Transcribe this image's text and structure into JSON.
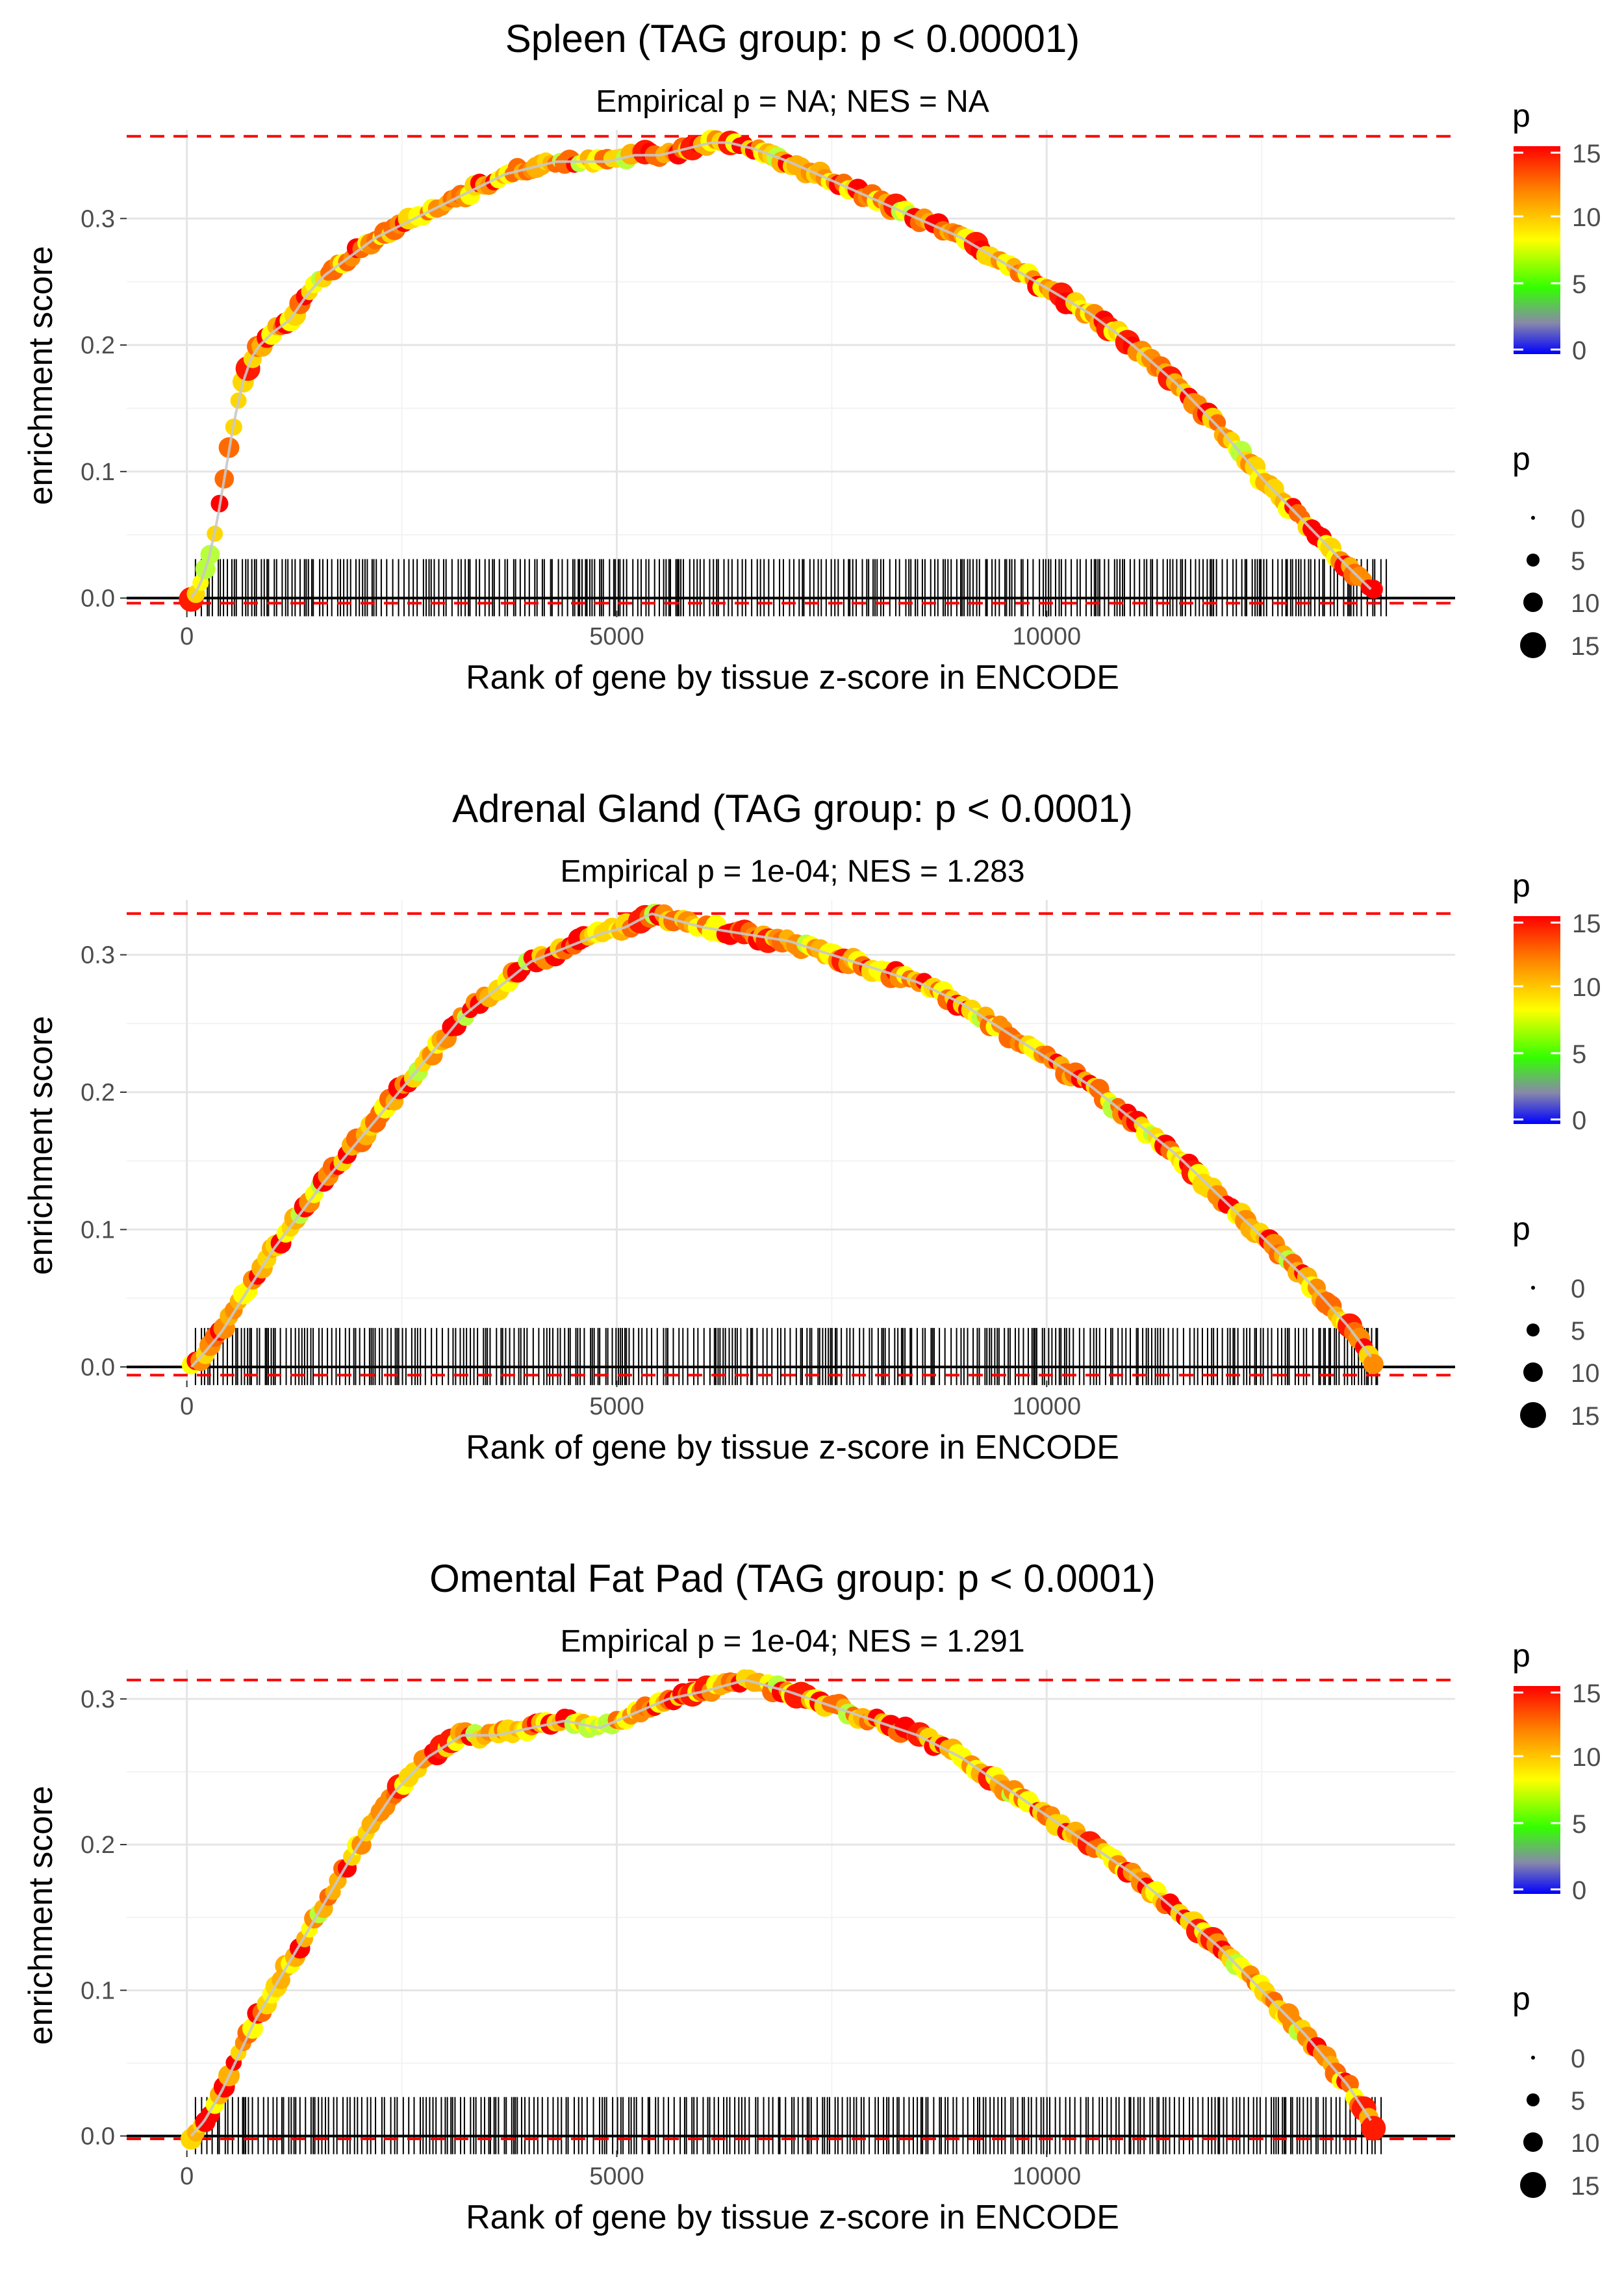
{
  "chart_data": [
    {
      "type": "line",
      "title": "Spleen (TAG group: p < 0.00001)",
      "subtitle": "Empirical p = NA; NES = NA",
      "xlabel": "Rank of gene by tissue z-score in ENCODE",
      "ylabel": "enrichment score",
      "xlim": [
        -700,
        14750
      ],
      "ylim": [
        -0.01,
        0.37
      ],
      "x_ticks": [
        0,
        5000,
        10000
      ],
      "x_tick_labels": [
        "0",
        "5000",
        "10000"
      ],
      "y_ticks": [
        0.0,
        0.1,
        0.2,
        0.3
      ],
      "y_tick_labels": [
        "0.0",
        "0.1",
        "0.2",
        "0.3"
      ],
      "max_es": 0.365,
      "min_es": -0.004,
      "x": [
        50,
        150,
        250,
        350,
        450,
        550,
        650,
        750,
        850,
        1000,
        1200,
        1400,
        1600,
        1800,
        2000,
        2200,
        2500,
        2800,
        3100,
        3400,
        3700,
        4000,
        4300,
        4600,
        4900,
        5200,
        5500,
        5800,
        6100,
        6300,
        6600,
        7000,
        7500,
        8000,
        8500,
        9000,
        9500,
        10000,
        10500,
        11000,
        11500,
        12000,
        12500,
        13000,
        13500,
        13800
      ],
      "values": [
        0.0,
        0.01,
        0.03,
        0.06,
        0.1,
        0.14,
        0.17,
        0.19,
        0.2,
        0.21,
        0.22,
        0.24,
        0.255,
        0.265,
        0.275,
        0.285,
        0.295,
        0.305,
        0.315,
        0.325,
        0.335,
        0.34,
        0.345,
        0.345,
        0.345,
        0.35,
        0.35,
        0.355,
        0.36,
        0.36,
        0.355,
        0.345,
        0.33,
        0.315,
        0.3,
        0.285,
        0.265,
        0.245,
        0.225,
        0.2,
        0.17,
        0.135,
        0.095,
        0.06,
        0.025,
        0.005
      ],
      "hit_ranks": {
        "start": 100,
        "end": 13950
      },
      "legend_color": {
        "title": "p",
        "labels": [
          "15",
          "10",
          "5",
          "0"
        ]
      },
      "legend_size": {
        "title": "p",
        "labels": [
          "0",
          "5",
          "10",
          "15"
        ]
      }
    },
    {
      "type": "line",
      "title": "Adrenal Gland (TAG group: p < 0.0001)",
      "subtitle": "Empirical p = 1e-04; NES = 1.283",
      "xlabel": "Rank of gene by tissue z-score in ENCODE",
      "ylabel": "enrichment score",
      "xlim": [
        -700,
        14750
      ],
      "ylim": [
        -0.01,
        0.34
      ],
      "x_ticks": [
        0,
        5000,
        10000
      ],
      "x_tick_labels": [
        "0",
        "5000",
        "10000"
      ],
      "y_ticks": [
        0.0,
        0.1,
        0.2,
        0.3
      ],
      "y_tick_labels": [
        "0.0",
        "0.1",
        "0.2",
        "0.3"
      ],
      "max_es": 0.33,
      "min_es": -0.006,
      "x": [
        50,
        200,
        400,
        600,
        800,
        1000,
        1300,
        1600,
        2000,
        2400,
        2800,
        3200,
        3600,
        4000,
        4400,
        4800,
        5100,
        5400,
        5700,
        6000,
        6500,
        7000,
        7500,
        8000,
        8500,
        9000,
        9500,
        10000,
        10500,
        11000,
        11500,
        12000,
        12500,
        13000,
        13500,
        13800
      ],
      "values": [
        0.0,
        0.01,
        0.025,
        0.045,
        0.065,
        0.085,
        0.11,
        0.135,
        0.165,
        0.195,
        0.225,
        0.255,
        0.275,
        0.295,
        0.305,
        0.315,
        0.32,
        0.33,
        0.325,
        0.32,
        0.315,
        0.31,
        0.3,
        0.29,
        0.28,
        0.265,
        0.245,
        0.225,
        0.205,
        0.18,
        0.155,
        0.125,
        0.095,
        0.065,
        0.03,
        0.005
      ],
      "hit_ranks": {
        "start": 100,
        "end": 13900
      },
      "legend_color": {
        "title": "p",
        "labels": [
          "15",
          "10",
          "5",
          "0"
        ]
      },
      "legend_size": {
        "title": "p",
        "labels": [
          "0",
          "5",
          "10",
          "15"
        ]
      }
    },
    {
      "type": "line",
      "title": "Omental Fat Pad (TAG group: p < 0.0001)",
      "subtitle": "Empirical p = 1e-04; NES = 1.291",
      "xlabel": "Rank of gene by tissue z-score in ENCODE",
      "ylabel": "enrichment score",
      "xlim": [
        -700,
        14750
      ],
      "ylim": [
        -0.01,
        0.32
      ],
      "x_ticks": [
        0,
        5000,
        10000
      ],
      "x_tick_labels": [
        "0",
        "5000",
        "10000"
      ],
      "y_ticks": [
        0.0,
        0.1,
        0.2,
        0.3
      ],
      "y_tick_labels": [
        "0.0",
        "0.1",
        "0.2",
        "0.3"
      ],
      "max_es": 0.313,
      "min_es": -0.002,
      "x": [
        50,
        200,
        400,
        600,
        800,
        1000,
        1300,
        1600,
        2000,
        2400,
        2800,
        3200,
        3600,
        4000,
        4400,
        4800,
        5200,
        5600,
        6000,
        6500,
        7000,
        7500,
        8000,
        8500,
        9000,
        9500,
        10000,
        10500,
        11000,
        11500,
        12000,
        12500,
        13000,
        13500,
        13800
      ],
      "values": [
        0.0,
        0.01,
        0.03,
        0.055,
        0.08,
        0.1,
        0.13,
        0.16,
        0.2,
        0.235,
        0.26,
        0.275,
        0.275,
        0.28,
        0.285,
        0.28,
        0.29,
        0.3,
        0.305,
        0.313,
        0.305,
        0.295,
        0.285,
        0.275,
        0.26,
        0.24,
        0.22,
        0.2,
        0.18,
        0.155,
        0.13,
        0.1,
        0.07,
        0.035,
        0.008
      ],
      "hit_ranks": {
        "start": 100,
        "end": 13900
      },
      "legend_color": {
        "title": "p",
        "labels": [
          "15",
          "10",
          "5",
          "0"
        ]
      },
      "legend_size": {
        "title": "p",
        "labels": [
          "0",
          "5",
          "10",
          "15"
        ]
      }
    }
  ]
}
